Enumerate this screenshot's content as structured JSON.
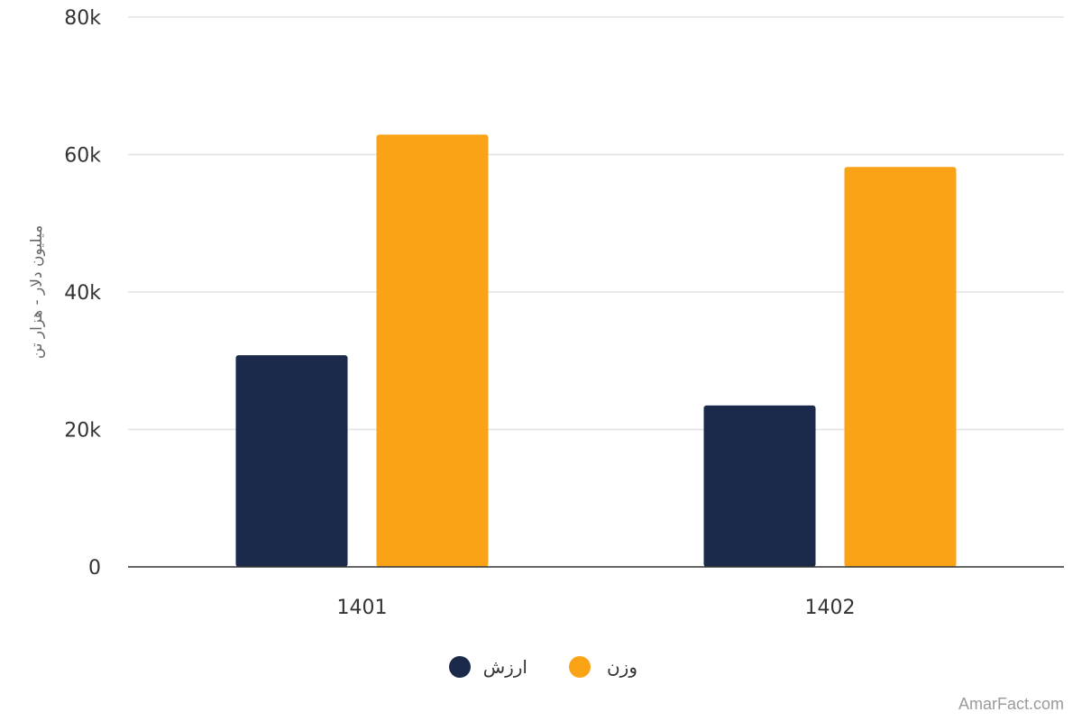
{
  "chart_data": {
    "type": "bar",
    "categories": [
      "1401",
      "1402"
    ],
    "series": [
      {
        "name": "ارزش",
        "color": "#1b2a4a",
        "values": [
          30800,
          23500
        ]
      },
      {
        "name": "وزن",
        "color": "#fba316",
        "values": [
          62900,
          58200
        ]
      }
    ],
    "ylabel": "میلیون دلار - هزار تن",
    "ylim": [
      0,
      80000
    ],
    "yticks": [
      {
        "value": 0,
        "label": "0"
      },
      {
        "value": 20000,
        "label": "20k"
      },
      {
        "value": 40000,
        "label": "40k"
      },
      {
        "value": 60000,
        "label": "60k"
      },
      {
        "value": 80000,
        "label": "80k"
      }
    ],
    "grid": true,
    "legend_position": "bottom"
  },
  "watermark": "AmarFact.com"
}
